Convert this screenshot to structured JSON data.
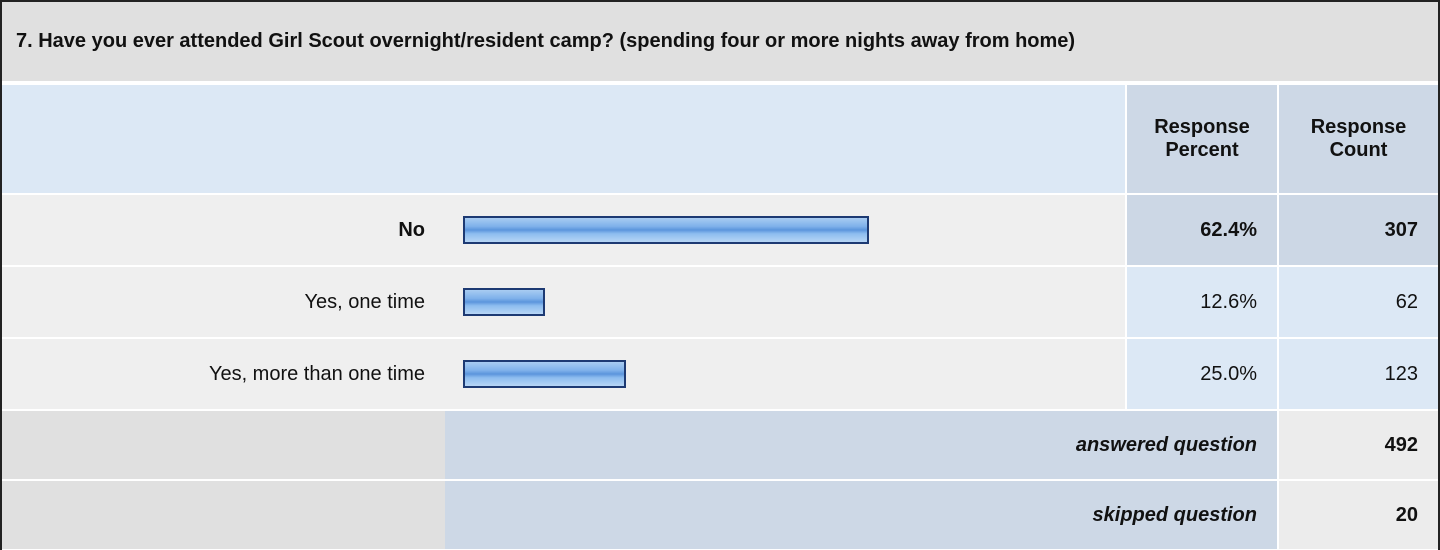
{
  "question": "7. Have you ever attended Girl Scout overnight/resident camp? (spending four or more nights away from home)",
  "header": {
    "percent": "Response Percent",
    "count": "Response Count"
  },
  "rows": [
    {
      "label": "No",
      "percent": 62.4,
      "percent_label": "62.4%",
      "count": 307
    },
    {
      "label": "Yes, one time",
      "percent": 12.6,
      "percent_label": "12.6%",
      "count": 62
    },
    {
      "label": "Yes, more than one time",
      "percent": 25.0,
      "percent_label": "25.0%",
      "count": 123
    }
  ],
  "answered": {
    "label": "answered question",
    "count": 492
  },
  "skipped": {
    "label": "skipped question",
    "count": 20
  }
}
